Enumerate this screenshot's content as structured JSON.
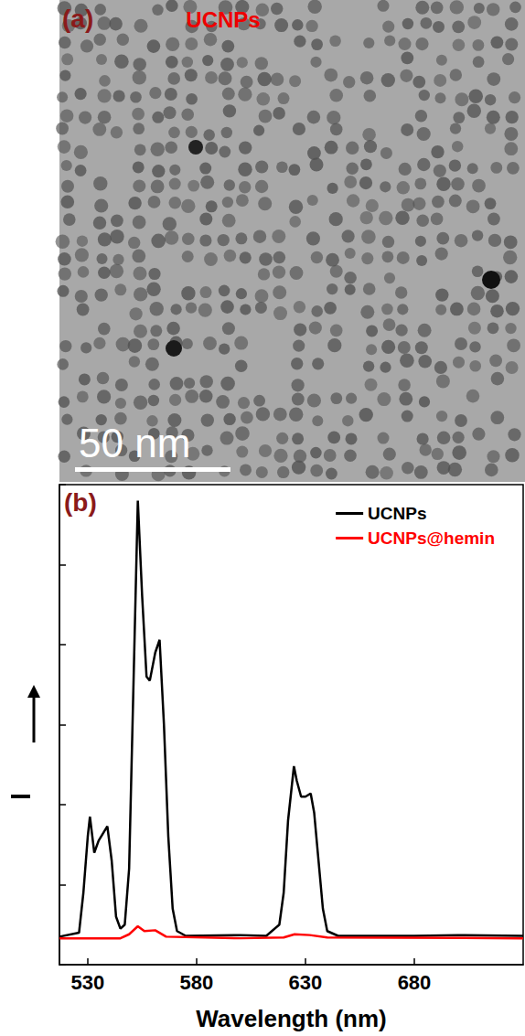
{
  "panel_a": {
    "label": "(a)",
    "title": "UCNPs",
    "scale_bar": "50 nm"
  },
  "chart_data": {
    "type": "line",
    "annotations": [
      "(b)"
    ],
    "x_label": "Wavelength (nm)",
    "xlim": [
      517,
      730
    ],
    "xticks": [
      530,
      580,
      630,
      680
    ],
    "ylim": [
      0,
      6
    ],
    "yticks": [
      0,
      1,
      2,
      3,
      4,
      5,
      6
    ],
    "tick_labels": "x",
    "grid": false,
    "legend": "upper right",
    "series": [
      {
        "name": "UCNPs",
        "color": "#000000",
        "x": [
          517,
          526,
          528,
          530,
          531,
          533,
          535,
          539,
          541,
          543,
          545,
          547,
          549,
          551,
          553,
          555,
          557,
          558.5,
          561,
          563,
          565,
          567,
          569,
          571,
          575,
          600,
          612,
          618,
          620,
          622,
          624.7,
          626,
          628,
          630,
          632.4,
          634,
          636,
          638,
          640,
          645,
          680,
          700,
          730
        ],
        "values": [
          0.35,
          0.4,
          0.9,
          1.6,
          1.85,
          1.4,
          1.55,
          1.73,
          1.3,
          0.6,
          0.45,
          0.5,
          1.2,
          3.5,
          5.8,
          4.6,
          3.6,
          3.55,
          3.9,
          4.06,
          3.0,
          1.6,
          0.7,
          0.42,
          0.36,
          0.37,
          0.36,
          0.5,
          0.9,
          1.8,
          2.48,
          2.3,
          2.1,
          2.1,
          2.14,
          1.9,
          1.3,
          0.7,
          0.42,
          0.36,
          0.36,
          0.37,
          0.36
        ]
      },
      {
        "name": "UCNPs@hemin",
        "color": "#ff0000",
        "x": [
          517,
          545,
          549,
          553,
          556,
          561,
          566,
          600,
          620,
          625,
          632,
          640,
          730
        ],
        "values": [
          0.33,
          0.33,
          0.38,
          0.48,
          0.42,
          0.43,
          0.35,
          0.33,
          0.34,
          0.38,
          0.37,
          0.34,
          0.33
        ]
      }
    ]
  }
}
